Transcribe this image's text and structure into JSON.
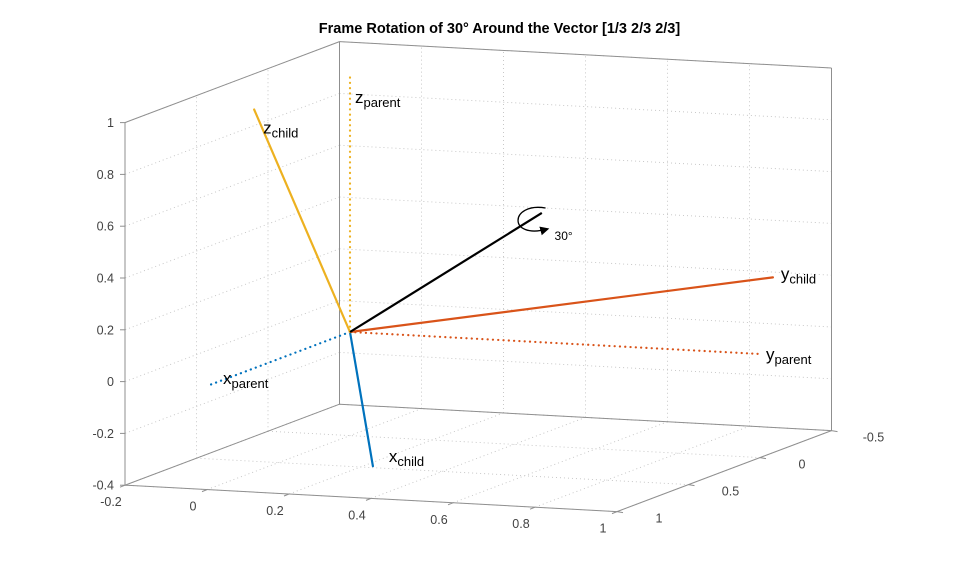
{
  "chart_data": {
    "type": "3d-vector-plot",
    "title": "Frame Rotation of 30° Around the Vector [1/3 2/3 2/3]",
    "grid": true,
    "axes": {
      "x": {
        "range": [
          -0.5,
          1
        ],
        "tick_values": [
          -0.5,
          0,
          0.5,
          1
        ],
        "ticks": [
          "-0.5",
          "0",
          "0.5",
          "1"
        ]
      },
      "y": {
        "range": [
          -0.2,
          1
        ],
        "tick_values": [
          -0.2,
          0,
          0.2,
          0.4,
          0.6,
          0.8,
          1
        ],
        "ticks": [
          "-0.2",
          "0",
          "0.2",
          "0.4",
          "0.6",
          "0.8",
          "1"
        ]
      },
      "z": {
        "range": [
          -0.4,
          1
        ],
        "tick_values": [
          -0.4,
          -0.2,
          0,
          0.2,
          0.4,
          0.6,
          0.8,
          1
        ],
        "ticks": [
          "-0.4",
          "-0.2",
          "0",
          "0.2",
          "0.4",
          "0.6",
          "0.8",
          "1"
        ]
      }
    },
    "vectors": [
      {
        "name": "x-parent",
        "label_main": "x",
        "label_sub": "parent",
        "components": [
          1,
          0,
          0
        ],
        "color": "#0072BD",
        "line_style": "dotted",
        "label_offset": [
          16,
          -2
        ]
      },
      {
        "name": "y-parent",
        "label_main": "y",
        "label_sub": "parent",
        "components": [
          0,
          1,
          0
        ],
        "color": "#D95319",
        "line_style": "dotted",
        "label_offset": [
          6,
          6
        ]
      },
      {
        "name": "z-parent",
        "label_main": "z",
        "label_sub": "parent",
        "components": [
          0,
          0,
          1
        ],
        "color": "#EDB120",
        "line_style": "dotted",
        "label_offset": [
          5,
          30
        ]
      },
      {
        "name": "x-child",
        "label_main": "x",
        "label_sub": "child",
        "components": [
          0.8809,
          0.3631,
          -0.3036
        ],
        "color": "#0072BD",
        "line_style": "solid",
        "label_offset": [
          16,
          -4
        ]
      },
      {
        "name": "y-child",
        "label_main": "y",
        "label_sub": "child",
        "components": [
          -0.3036,
          0.9256,
          0.2262
        ],
        "color": "#D95319",
        "line_style": "solid",
        "label_offset": [
          8,
          2
        ]
      },
      {
        "name": "z-child",
        "label_main": "z",
        "label_sub": "child",
        "components": [
          0.3631,
          -0.1071,
          0.9256
        ],
        "color": "#EDB120",
        "line_style": "solid",
        "label_offset": [
          9,
          24
        ]
      }
    ],
    "rotation_annotation": {
      "label": "30°",
      "axis_vector": [
        0.3333,
        0.6667,
        0.6667
      ],
      "angle_deg": 30,
      "color": "#000000",
      "draw_length": 0.85
    },
    "colors": {
      "grid": "#c3c3c3",
      "box_edge": "#8f8f8f",
      "tick_label": "#424242",
      "vector_label": "#000000"
    }
  }
}
